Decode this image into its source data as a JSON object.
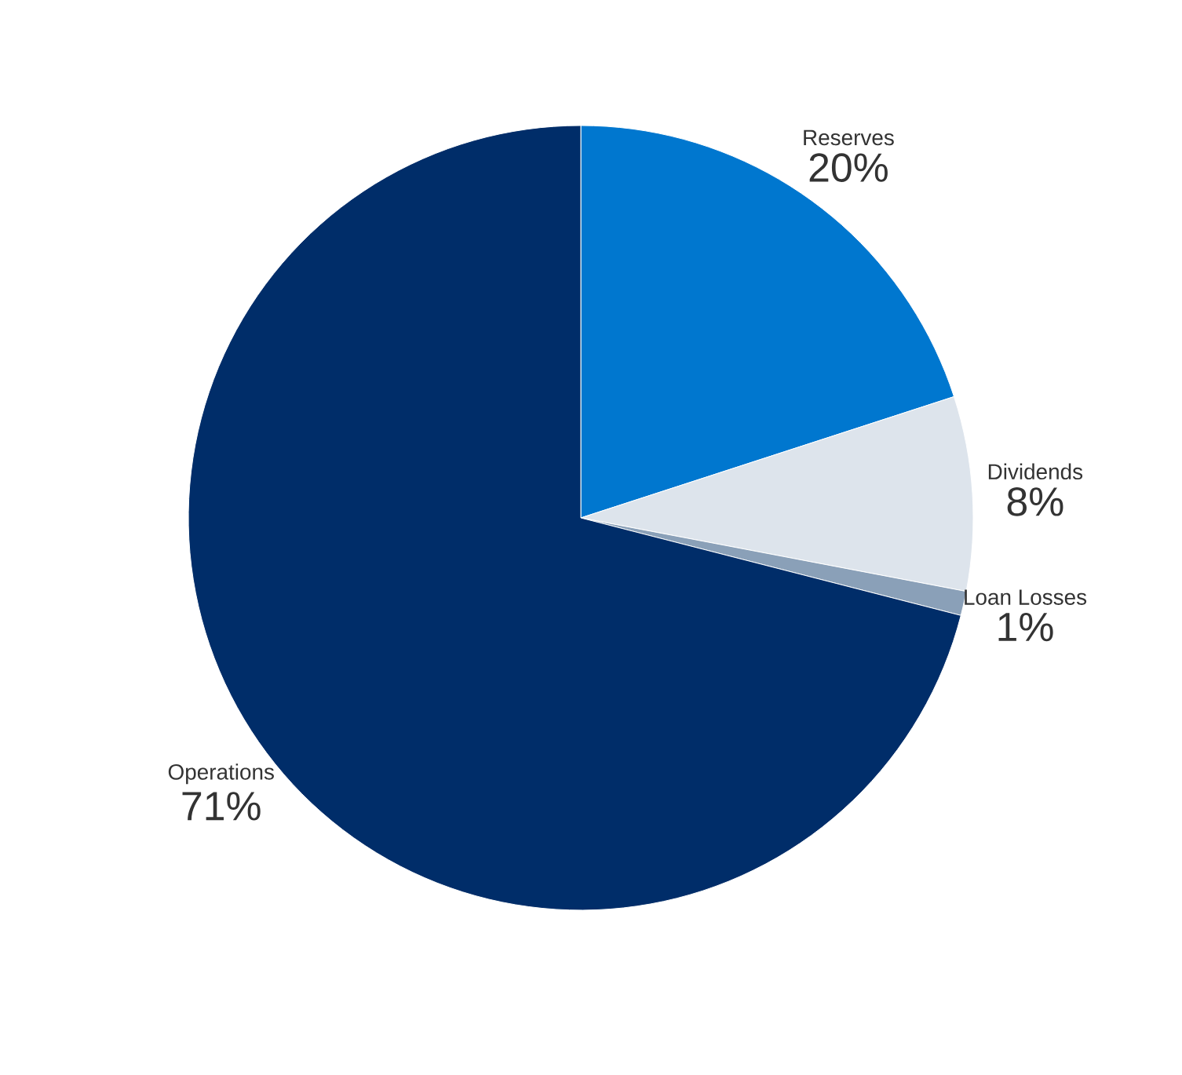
{
  "chart_data": {
    "type": "pie",
    "categories": [
      "Reserves",
      "Dividends",
      "Loan Losses",
      "Operations"
    ],
    "values": [
      20,
      8,
      1,
      71
    ],
    "value_labels": [
      "20%",
      "8%",
      "1%",
      "71%"
    ],
    "colors": [
      "#0077cf",
      "#dde4ec",
      "#8aa0b8",
      "#002d69"
    ]
  }
}
